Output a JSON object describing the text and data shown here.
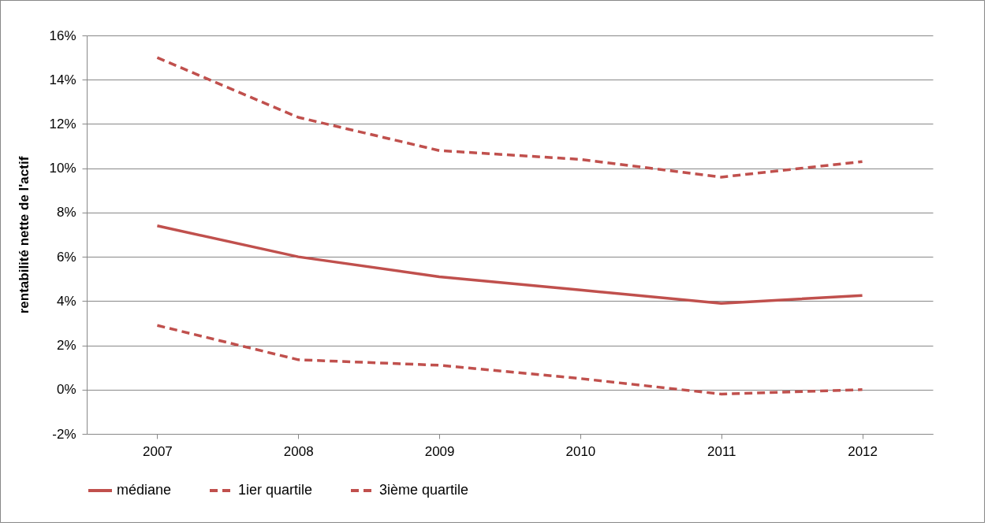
{
  "chart_data": {
    "type": "line",
    "ylabel": "rentabilité nette de l'actif",
    "categories": [
      "2007",
      "2008",
      "2009",
      "2010",
      "2011",
      "2012"
    ],
    "series": [
      {
        "name": "médiane",
        "color": "#c0504d",
        "line_style": "solid",
        "values": [
          7.4,
          6.0,
          5.1,
          4.5,
          3.9,
          4.25
        ]
      },
      {
        "name": "1ier quartile",
        "color": "#c0504d",
        "line_style": "dashed",
        "values": [
          2.9,
          1.35,
          1.1,
          0.5,
          -0.2,
          0.0
        ]
      },
      {
        "name": "3ième quartile",
        "color": "#c0504d",
        "line_style": "dashed",
        "values": [
          15.0,
          12.3,
          10.8,
          10.4,
          9.6,
          10.3
        ]
      }
    ],
    "ylim": [
      -2,
      16
    ],
    "yticks": [
      {
        "value": -2,
        "label": "-2%"
      },
      {
        "value": 0,
        "label": "0%"
      },
      {
        "value": 2,
        "label": "2%"
      },
      {
        "value": 4,
        "label": "4%"
      },
      {
        "value": 6,
        "label": "6%"
      },
      {
        "value": 8,
        "label": "8%"
      },
      {
        "value": 10,
        "label": "10%"
      },
      {
        "value": 12,
        "label": "12%"
      },
      {
        "value": 14,
        "label": "14%"
      },
      {
        "value": 16,
        "label": "16%"
      }
    ],
    "grid": "y",
    "legend": "bottom",
    "marker": "none"
  }
}
